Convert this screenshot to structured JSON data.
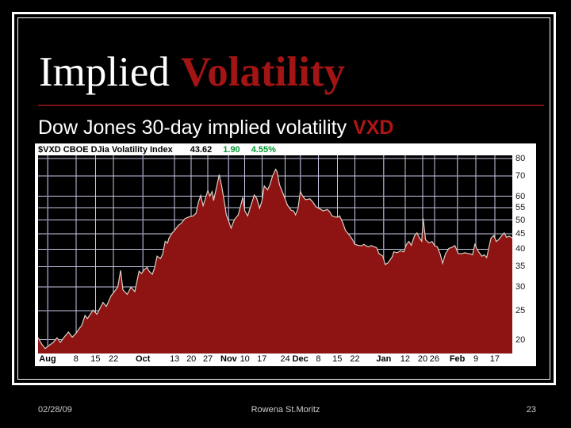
{
  "slide": {
    "title": {
      "part1": "Implied",
      "part2": "Volatility"
    },
    "subtitle": {
      "text": "Dow Jones 30-day implied volatility",
      "ticker": "VXD"
    },
    "footer": {
      "date": "02/28/09",
      "author": "Rowena St.Moritz",
      "page": "23"
    }
  },
  "colors": {
    "slide_bg": "#000000",
    "title_accent": "#a31414",
    "ticker_accent": "#b01414",
    "divider": "#7a1111",
    "chart_bg": "#ffffff",
    "plot_bg": "#000000",
    "grid": "#c9c9e6",
    "grid_month": "#8f8fb2",
    "area_fill": "#8e1313",
    "area_line": "#d8d2c6",
    "value_up": "#009933",
    "footer_text": "#cccccc"
  },
  "chart_data": {
    "type": "area",
    "title": "$VXD CBOE DJia Volatility Index",
    "last": "43.62",
    "change": "1.90",
    "change_pct": "4.55%",
    "y_scale": "log",
    "grid": true,
    "legend": "none",
    "y_ticks": [
      80,
      70,
      60,
      55,
      50,
      45,
      40,
      35,
      30,
      25,
      20
    ],
    "y_range": [
      18,
      82
    ],
    "x_ticks": [
      {
        "label": "Aug",
        "f": 0.02,
        "month": true
      },
      {
        "label": "8",
        "f": 0.08
      },
      {
        "label": "15",
        "f": 0.121
      },
      {
        "label": "22",
        "f": 0.159
      },
      {
        "label": "Oct",
        "f": 0.221,
        "month": true
      },
      {
        "label": "13",
        "f": 0.288
      },
      {
        "label": "20",
        "f": 0.323
      },
      {
        "label": "27",
        "f": 0.358
      },
      {
        "label": "Nov",
        "f": 0.402,
        "month": true
      },
      {
        "label": "10",
        "f": 0.436
      },
      {
        "label": "17",
        "f": 0.472
      },
      {
        "label": "24",
        "f": 0.521
      },
      {
        "label": "Dec",
        "f": 0.553,
        "month": true
      },
      {
        "label": "8",
        "f": 0.591
      },
      {
        "label": "15",
        "f": 0.631
      },
      {
        "label": "22",
        "f": 0.668
      },
      {
        "label": "Jan",
        "f": 0.729,
        "month": true
      },
      {
        "label": "12",
        "f": 0.774
      },
      {
        "label": "20",
        "f": 0.811
      },
      {
        "label": "26",
        "f": 0.836
      },
      {
        "label": "Feb",
        "f": 0.884,
        "month": true
      },
      {
        "label": "9",
        "f": 0.923
      },
      {
        "label": "17",
        "f": 0.963
      }
    ],
    "points": [
      [
        0.0,
        20.3
      ],
      [
        0.008,
        19.3
      ],
      [
        0.015,
        18.7
      ],
      [
        0.024,
        19.2
      ],
      [
        0.032,
        19.6
      ],
      [
        0.04,
        20.3
      ],
      [
        0.047,
        19.6
      ],
      [
        0.055,
        20.4
      ],
      [
        0.064,
        21.2
      ],
      [
        0.072,
        20.4
      ],
      [
        0.08,
        21.0
      ],
      [
        0.087,
        21.8
      ],
      [
        0.092,
        22.3
      ],
      [
        0.099,
        24.1
      ],
      [
        0.104,
        23.5
      ],
      [
        0.116,
        25.1
      ],
      [
        0.124,
        24.3
      ],
      [
        0.137,
        26.6
      ],
      [
        0.144,
        25.8
      ],
      [
        0.154,
        28.0
      ],
      [
        0.168,
        29.9
      ],
      [
        0.174,
        34.0
      ],
      [
        0.179,
        29.3
      ],
      [
        0.188,
        28.3
      ],
      [
        0.196,
        29.9
      ],
      [
        0.204,
        28.9
      ],
      [
        0.213,
        33.8
      ],
      [
        0.218,
        33.2
      ],
      [
        0.224,
        34.2
      ],
      [
        0.23,
        34.8
      ],
      [
        0.234,
        33.8
      ],
      [
        0.241,
        33.0
      ],
      [
        0.246,
        34.8
      ],
      [
        0.251,
        37.9
      ],
      [
        0.258,
        37.2
      ],
      [
        0.263,
        38.6
      ],
      [
        0.268,
        42.5
      ],
      [
        0.273,
        41.9
      ],
      [
        0.276,
        43.5
      ],
      [
        0.283,
        45.3
      ],
      [
        0.288,
        46.2
      ],
      [
        0.296,
        48.0
      ],
      [
        0.302,
        48.8
      ],
      [
        0.31,
        50.6
      ],
      [
        0.318,
        51.2
      ],
      [
        0.327,
        51.6
      ],
      [
        0.333,
        52.6
      ],
      [
        0.338,
        57.2
      ],
      [
        0.343,
        60.3
      ],
      [
        0.348,
        55.8
      ],
      [
        0.352,
        58.4
      ],
      [
        0.358,
        62.7
      ],
      [
        0.362,
        60.0
      ],
      [
        0.367,
        62.1
      ],
      [
        0.37,
        58.0
      ],
      [
        0.375,
        63.0
      ],
      [
        0.379,
        67.0
      ],
      [
        0.382,
        70.7
      ],
      [
        0.387,
        65.0
      ],
      [
        0.39,
        61.0
      ],
      [
        0.394,
        56.0
      ],
      [
        0.397,
        52.0
      ],
      [
        0.402,
        49.5
      ],
      [
        0.407,
        47.0
      ],
      [
        0.414,
        50.2
      ],
      [
        0.422,
        52.0
      ],
      [
        0.432,
        59.6
      ],
      [
        0.436,
        53.6
      ],
      [
        0.442,
        51.6
      ],
      [
        0.447,
        54.7
      ],
      [
        0.456,
        60.6
      ],
      [
        0.461,
        59.0
      ],
      [
        0.467,
        54.7
      ],
      [
        0.472,
        57.9
      ],
      [
        0.477,
        64.9
      ],
      [
        0.484,
        63.0
      ],
      [
        0.489,
        65.5
      ],
      [
        0.494,
        69.7
      ],
      [
        0.501,
        73.7
      ],
      [
        0.504,
        72.3
      ],
      [
        0.509,
        65.5
      ],
      [
        0.517,
        60.9
      ],
      [
        0.526,
        56.0
      ],
      [
        0.534,
        53.8
      ],
      [
        0.539,
        53.6
      ],
      [
        0.543,
        52.0
      ],
      [
        0.548,
        54.5
      ],
      [
        0.553,
        62.2
      ],
      [
        0.558,
        60.0
      ],
      [
        0.564,
        58.4
      ],
      [
        0.573,
        58.8
      ],
      [
        0.58,
        57.2
      ],
      [
        0.586,
        55.3
      ],
      [
        0.595,
        54.4
      ],
      [
        0.601,
        53.6
      ],
      [
        0.61,
        54.2
      ],
      [
        0.615,
        53.2
      ],
      [
        0.62,
        51.6
      ],
      [
        0.626,
        51.2
      ],
      [
        0.632,
        51.1
      ],
      [
        0.636,
        51.6
      ],
      [
        0.643,
        48.8
      ],
      [
        0.648,
        46.2
      ],
      [
        0.657,
        44.4
      ],
      [
        0.663,
        43.0
      ],
      [
        0.668,
        41.5
      ],
      [
        0.675,
        41.2
      ],
      [
        0.682,
        41.0
      ],
      [
        0.687,
        41.5
      ],
      [
        0.692,
        41.0
      ],
      [
        0.697,
        40.7
      ],
      [
        0.702,
        41.1
      ],
      [
        0.708,
        40.8
      ],
      [
        0.714,
        40.4
      ],
      [
        0.719,
        38.6
      ],
      [
        0.724,
        38.2
      ],
      [
        0.727,
        37.9
      ],
      [
        0.732,
        35.6
      ],
      [
        0.737,
        35.9
      ],
      [
        0.742,
        36.8
      ],
      [
        0.747,
        37.8
      ],
      [
        0.75,
        39.2
      ],
      [
        0.757,
        38.9
      ],
      [
        0.764,
        39.5
      ],
      [
        0.771,
        39.2
      ],
      [
        0.777,
        41.5
      ],
      [
        0.782,
        42.4
      ],
      [
        0.787,
        41.2
      ],
      [
        0.794,
        44.4
      ],
      [
        0.799,
        45.3
      ],
      [
        0.804,
        43.6
      ],
      [
        0.809,
        42.5
      ],
      [
        0.812,
        50.6
      ],
      [
        0.817,
        43.0
      ],
      [
        0.824,
        42.0
      ],
      [
        0.831,
        42.4
      ],
      [
        0.836,
        41.1
      ],
      [
        0.842,
        40.7
      ],
      [
        0.848,
        38.5
      ],
      [
        0.853,
        35.9
      ],
      [
        0.859,
        38.6
      ],
      [
        0.866,
        40.2
      ],
      [
        0.873,
        40.6
      ],
      [
        0.879,
        41.1
      ],
      [
        0.886,
        38.7
      ],
      [
        0.893,
        38.6
      ],
      [
        0.9,
        38.9
      ],
      [
        0.906,
        38.7
      ],
      [
        0.911,
        38.6
      ],
      [
        0.916,
        38.3
      ],
      [
        0.921,
        41.5
      ],
      [
        0.926,
        39.9
      ],
      [
        0.931,
        38.8
      ],
      [
        0.936,
        37.9
      ],
      [
        0.941,
        38.3
      ],
      [
        0.946,
        37.5
      ],
      [
        0.955,
        43.5
      ],
      [
        0.961,
        44.4
      ],
      [
        0.966,
        42.4
      ],
      [
        0.971,
        43.0
      ],
      [
        0.978,
        44.4
      ],
      [
        0.983,
        45.3
      ],
      [
        0.988,
        43.8
      ],
      [
        0.993,
        44.2
      ],
      [
        1.0,
        43.6
      ]
    ]
  }
}
